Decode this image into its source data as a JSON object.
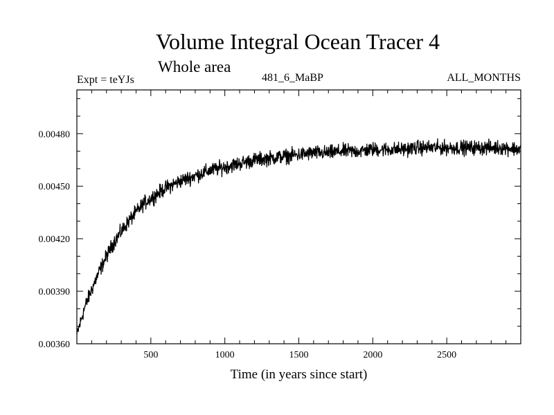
{
  "chart_data": {
    "type": "line",
    "title": "Volume Integral Ocean Tracer 4",
    "subtitle": "Whole area",
    "left_label": "Expt = teYJs",
    "center_label": "481_6_MaBP",
    "right_label": "ALL_MONTHS",
    "xlabel": "Time (in years since start)",
    "ylabel": "",
    "xlim": [
      0,
      3000
    ],
    "ylim": [
      0.0036,
      0.00505
    ],
    "xticks": [
      500,
      1000,
      1500,
      2000,
      2500
    ],
    "yticks": [
      0.0036,
      0.0039,
      0.0042,
      0.0045,
      0.0048
    ],
    "ytick_labels": [
      "0.00360",
      "0.00390",
      "0.00420",
      "0.00450",
      "0.00480"
    ],
    "grid": false,
    "series": [
      {
        "name": "Tracer 4",
        "x": [
          0,
          50,
          100,
          150,
          200,
          250,
          300,
          350,
          400,
          450,
          500,
          600,
          700,
          800,
          900,
          1000,
          1100,
          1200,
          1300,
          1400,
          1500,
          1600,
          1700,
          1800,
          1900,
          2000,
          2100,
          2200,
          2300,
          2400,
          2500,
          2600,
          2700,
          2800,
          2900,
          3000
        ],
        "values": [
          0.00365,
          0.0038,
          0.00391,
          0.00401,
          0.0041,
          0.00418,
          0.00424,
          0.0043,
          0.00435,
          0.0044,
          0.00443,
          0.00449,
          0.00453,
          0.00456,
          0.00459,
          0.00461,
          0.00463,
          0.00465,
          0.00466,
          0.00467,
          0.00468,
          0.00469,
          0.00469,
          0.0047,
          0.0047,
          0.00471,
          0.00471,
          0.00471,
          0.00472,
          0.00472,
          0.00472,
          0.00472,
          0.00472,
          0.00472,
          0.00472,
          0.00471
        ],
        "noise_amplitude": 4e-05,
        "color": "#000000"
      }
    ]
  }
}
